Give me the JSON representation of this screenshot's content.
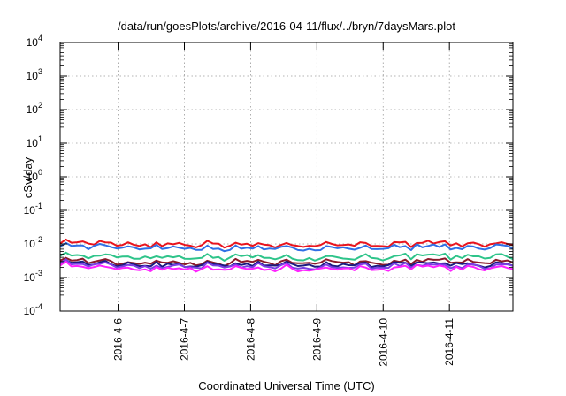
{
  "chart_data": {
    "type": "line",
    "title": "/data/run/goesPlots/archive/2016-04-11/flux/../bryn/7daysMars.plot",
    "xlabel": "Coordinated Universal Time (UTC)",
    "ylabel": "cSv/day",
    "yscale": "log",
    "ylim": [
      0.0001,
      10000
    ],
    "xlim": [
      "2016-04-05T03:00",
      "2016-04-11T23:00"
    ],
    "grid": true,
    "y_ticks": [
      {
        "base": "10",
        "exp": "-4"
      },
      {
        "base": "10",
        "exp": "-3"
      },
      {
        "base": "10",
        "exp": "-2"
      },
      {
        "base": "10",
        "exp": "-1"
      },
      {
        "base": "10",
        "exp": "0"
      },
      {
        "base": "10",
        "exp": "1"
      },
      {
        "base": "10",
        "exp": "2"
      },
      {
        "base": "10",
        "exp": "3"
      },
      {
        "base": "10",
        "exp": "4"
      }
    ],
    "x_ticks": [
      "2016-4-6",
      "2016-4-7",
      "2016-4-8",
      "2016-4-9",
      "2016-4-10",
      "2016-4-11"
    ],
    "series": [
      {
        "color": "#e8141e",
        "base": 0.0098,
        "start": 0.0135
      },
      {
        "color": "#2f6fe6",
        "base": 0.0078,
        "start": 0.011
      },
      {
        "color": "#2ec48a",
        "base": 0.0041,
        "start": 0.0058
      },
      {
        "color": "#8a1a2a",
        "base": 0.0029,
        "start": 0.0042
      },
      {
        "color": "#1a1a80",
        "base": 0.0025,
        "start": 0.0037
      },
      {
        "color": "#7b3fe4",
        "base": 0.0022,
        "start": 0.0034
      },
      {
        "color": "#ff22ff",
        "base": 0.0019,
        "start": 0.003
      }
    ]
  }
}
